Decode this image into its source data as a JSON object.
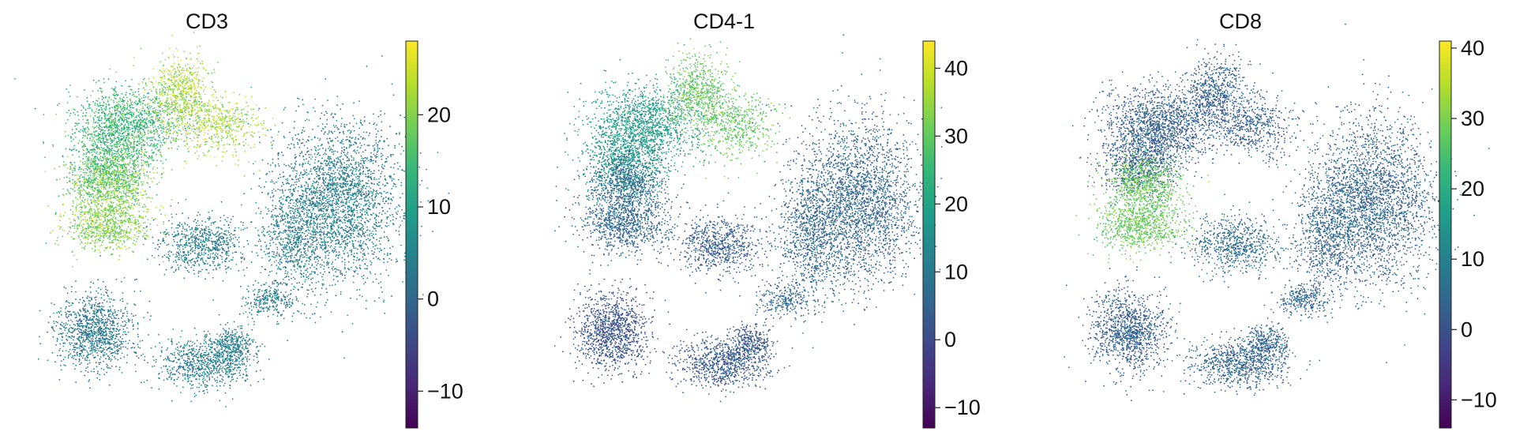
{
  "colors": {
    "viridis": [
      "#440154",
      "#482878",
      "#3e4989",
      "#31688e",
      "#26828e",
      "#1f9e89",
      "#35b779",
      "#6ece58",
      "#b5de2b",
      "#fde725"
    ],
    "background": "#ffffff",
    "text": "#111111"
  },
  "chart_data": [
    {
      "type": "scatter",
      "subtype": "umap-embedding",
      "title": "CD3",
      "colorbar": {
        "min": -14,
        "max": 28,
        "ticks": [
          -10,
          0,
          10,
          20
        ],
        "tick_labels": [
          "−10",
          "0",
          "10",
          "20"
        ]
      },
      "clusters": [
        {
          "region": "top-left",
          "value": 14
        },
        {
          "region": "top-peak",
          "value": 22
        },
        {
          "region": "left-middle",
          "value": 20
        },
        {
          "region": "center-small",
          "value": 4
        },
        {
          "region": "right-large",
          "value": 4
        },
        {
          "region": "bottom-left",
          "value": 3
        },
        {
          "region": "bottom-center",
          "value": 4
        }
      ]
    },
    {
      "type": "scatter",
      "subtype": "umap-embedding",
      "title": "CD4-1",
      "colorbar": {
        "min": -13,
        "max": 44,
        "ticks": [
          -10,
          0,
          10,
          20,
          30,
          40
        ],
        "tick_labels": [
          "−10",
          "0",
          "10",
          "20",
          "30",
          "40"
        ]
      },
      "clusters": [
        {
          "region": "top-left",
          "value": 18
        },
        {
          "region": "top-peak",
          "value": 30
        },
        {
          "region": "left-middle",
          "value": 6
        },
        {
          "region": "center-small",
          "value": 4
        },
        {
          "region": "right-large",
          "value": 6
        },
        {
          "region": "bottom-left",
          "value": 2
        },
        {
          "region": "bottom-center",
          "value": 3
        }
      ]
    },
    {
      "type": "scatter",
      "subtype": "umap-embedding",
      "title": "CD8",
      "colorbar": {
        "min": -14,
        "max": 41,
        "ticks": [
          -10,
          0,
          10,
          20,
          30,
          40
        ],
        "tick_labels": [
          "−10",
          "0",
          "10",
          "20",
          "30",
          "40"
        ]
      },
      "clusters": [
        {
          "region": "top-left",
          "value": 3
        },
        {
          "region": "top-peak",
          "value": 3
        },
        {
          "region": "left-middle",
          "value": 28
        },
        {
          "region": "center-small",
          "value": 6
        },
        {
          "region": "right-large",
          "value": 4
        },
        {
          "region": "bottom-left",
          "value": 3
        },
        {
          "region": "bottom-center",
          "value": 4
        }
      ]
    }
  ]
}
